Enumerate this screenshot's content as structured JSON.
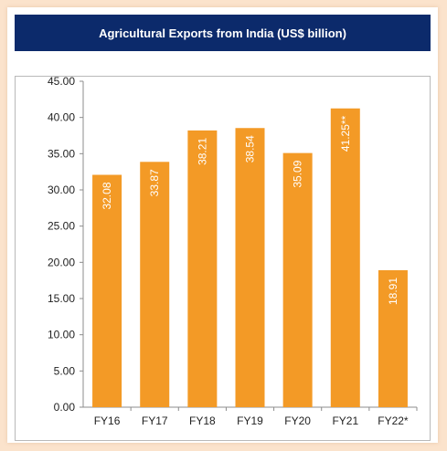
{
  "chart_data": {
    "type": "bar",
    "title": "Agricultural Exports from India (US$ billion)",
    "categories": [
      "FY16",
      "FY17",
      "FY18",
      "FY19",
      "FY20",
      "FY21",
      "FY22*"
    ],
    "values": [
      32.08,
      33.87,
      38.21,
      38.54,
      35.09,
      41.25,
      18.91
    ],
    "data_labels": [
      "32.08",
      "33.87",
      "38.21",
      "38.54",
      "35.09",
      "41.25**",
      "18.91"
    ],
    "yticks": [
      "0.00",
      "5.00",
      "10.00",
      "15.00",
      "20.00",
      "25.00",
      "30.00",
      "35.00",
      "40.00",
      "45.00"
    ],
    "ylim": [
      0,
      45
    ],
    "grid": false,
    "bar_color": "#f39a26"
  }
}
